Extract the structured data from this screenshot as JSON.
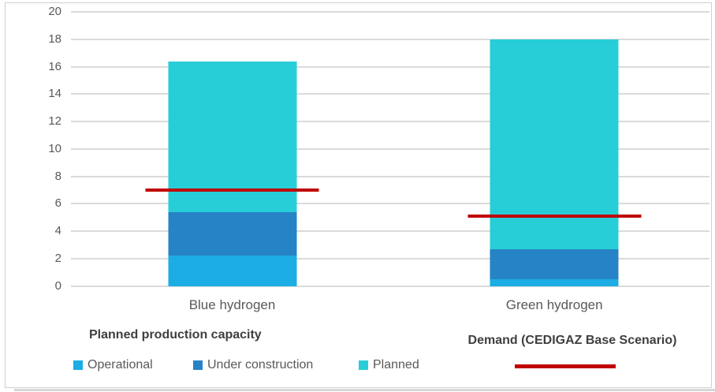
{
  "colors": {
    "operational": "#1CADE4",
    "under_construction": "#2683C6",
    "planned": "#27CED7",
    "demand_line": "#C00000",
    "gridline": "#DBDBDB",
    "tick_text": "#595959",
    "legend_title_text": "#3F3F3F",
    "frame_border": "#CFCFCF"
  },
  "chart_data": {
    "type": "bar",
    "stacked": true,
    "title": "",
    "categories": [
      "Blue hydrogen",
      "Green hydrogen"
    ],
    "series": [
      {
        "name": "Operational",
        "color": "#1CADE4",
        "values": [
          2.2,
          0.5
        ]
      },
      {
        "name": "Under construction",
        "color": "#2683C6",
        "values": [
          3.2,
          2.2
        ]
      },
      {
        "name": "Planned",
        "color": "#27CED7",
        "values": [
          11.0,
          15.3
        ]
      }
    ],
    "stack_totals": [
      16.4,
      18.0
    ],
    "overlay_lines": {
      "name": "Demand (CEDIGAZ Base Scenario)",
      "color": "#C00000",
      "values": [
        7.0,
        5.1
      ]
    },
    "ylim": [
      0,
      20
    ],
    "yticks": [
      0,
      2,
      4,
      6,
      8,
      10,
      12,
      14,
      16,
      18,
      20
    ],
    "grid": true,
    "legend_position": "bottom"
  },
  "legend": {
    "capacity_title": "Planned production capacity",
    "demand_title": "Demand (CEDIGAZ Base Scenario)",
    "items": [
      {
        "label": "Operational",
        "color": "#1CADE4"
      },
      {
        "label": "Under construction",
        "color": "#2683C6"
      },
      {
        "label": "Planned",
        "color": "#27CED7"
      }
    ],
    "demand_line_color": "#C00000"
  }
}
